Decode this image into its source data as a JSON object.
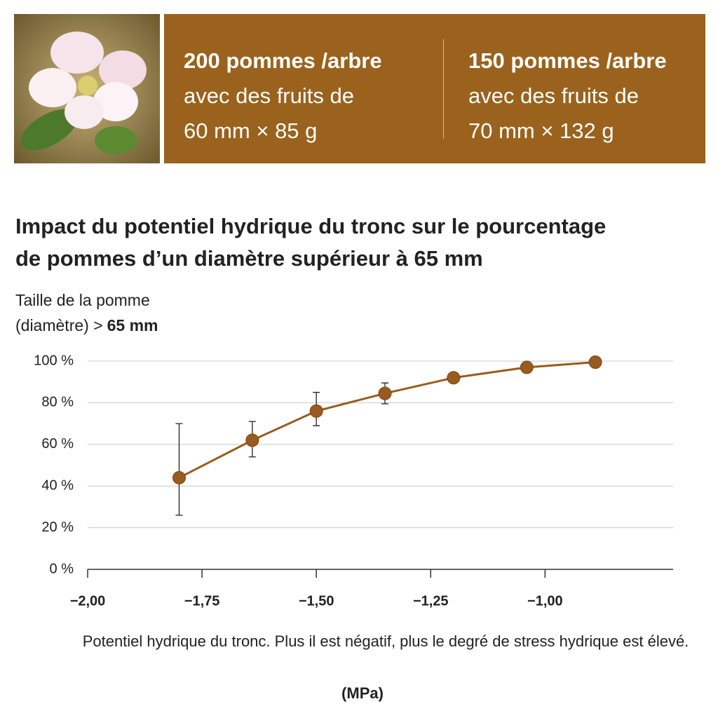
{
  "header": {
    "panels": [
      {
        "title": "200 pommes /arbre",
        "line1": "avec des fruits de",
        "line2": "60 mm × 85 g"
      },
      {
        "title": "150 pommes /arbre",
        "line1": "avec des fruits de",
        "line2": "70 mm × 132 g"
      }
    ]
  },
  "chart_data": {
    "type": "line",
    "title_lines": [
      "Impact  du potentiel hydrique du tronc sur le pourcentage",
      "de pommes d’un diamètre supérieur à 65 mm"
    ],
    "y_label_line1": "Taille de la pomme",
    "y_label_line2": "(diamètre) >",
    "y_label_line2_bold": "65 mm",
    "x_label": "Potentiel hydrique du tronc. Plus il est négatif, plus le degré de stress hydrique est élevé.",
    "x_unit": "(MPa)",
    "x": [
      -1.8,
      -1.64,
      -1.5,
      -1.35,
      -1.2,
      -1.04,
      -0.89
    ],
    "values": [
      44,
      62,
      76,
      84.5,
      92,
      97,
      99.5
    ],
    "errors_plus": [
      26,
      9,
      9,
      5,
      null,
      null,
      null
    ],
    "errors_minus": [
      18,
      8,
      7,
      5,
      null,
      null,
      null
    ],
    "color": "#9a5b1e",
    "xlim": [
      -2,
      -0.72
    ],
    "ylim": [
      0,
      100
    ],
    "xticks": [
      {
        "value": -2,
        "label": "−2,00"
      },
      {
        "value": -1.75,
        "label": "−1,75"
      },
      {
        "value": -1.5,
        "label": "−1,50"
      },
      {
        "value": -1.25,
        "label": "−1,25"
      },
      {
        "value": -1,
        "label": "−1,00"
      }
    ],
    "yticks": [
      {
        "value": 0,
        "label": "0 %"
      },
      {
        "value": 20,
        "label": "20 %"
      },
      {
        "value": 40,
        "label": "40 %"
      },
      {
        "value": 60,
        "label": "60 %"
      },
      {
        "value": 80,
        "label": "80 %"
      },
      {
        "value": 100,
        "label": "100 %"
      }
    ],
    "grid": true
  }
}
